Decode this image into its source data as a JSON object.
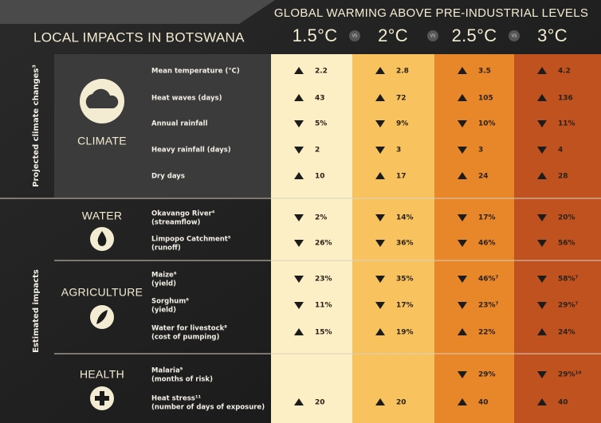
{
  "header": {
    "title": "LOCAL IMPACTS IN BOTSWANA",
    "scenario_title": "GLOBAL WARMING ABOVE PRE-INDUSTRIAL LEVELS",
    "levels": [
      "1.5°C",
      "2°C",
      "2.5°C",
      "3°C"
    ],
    "vs": "VS",
    "colors": [
      "#fcefc6",
      "#f8c35f",
      "#e8862a",
      "#c0521f"
    ]
  },
  "groups": [
    {
      "label": "Projected climate changes³",
      "sections": [
        0
      ]
    },
    {
      "label": "Estimated impacts",
      "sections": [
        1,
        2,
        3
      ]
    }
  ],
  "sections": [
    {
      "label": "CLIMATE",
      "rows": [
        {
          "label": "Mean temperature (°C)",
          "cells": [
            {
              "dir": "up",
              "text": "2.2"
            },
            {
              "dir": "up",
              "text": "2.8"
            },
            {
              "dir": "up",
              "text": "3.5"
            },
            {
              "dir": "up",
              "text": "4.2"
            }
          ]
        },
        {
          "label": "Heat waves (days)",
          "cells": [
            {
              "dir": "up",
              "text": "43"
            },
            {
              "dir": "up",
              "text": "72"
            },
            {
              "dir": "up",
              "text": "105"
            },
            {
              "dir": "up",
              "text": "136"
            }
          ]
        },
        {
          "label": "Annual rainfall",
          "cells": [
            {
              "dir": "down",
              "text": "5%"
            },
            {
              "dir": "down",
              "text": "9%"
            },
            {
              "dir": "down",
              "text": "10%"
            },
            {
              "dir": "down",
              "text": "11%"
            }
          ]
        },
        {
          "label": "Heavy rainfall (days)",
          "cells": [
            {
              "dir": "down",
              "text": "2"
            },
            {
              "dir": "down",
              "text": "3"
            },
            {
              "dir": "down",
              "text": "3"
            },
            {
              "dir": "down",
              "text": "4"
            }
          ]
        },
        {
          "label": "Dry days",
          "cells": [
            {
              "dir": "up",
              "text": "10"
            },
            {
              "dir": "up",
              "text": "17"
            },
            {
              "dir": "up",
              "text": "24"
            },
            {
              "dir": "up",
              "text": "28"
            }
          ]
        }
      ]
    },
    {
      "label": "WATER",
      "rows": [
        {
          "label": "Okavango River⁴",
          "sublabel": "(streamflow)",
          "cells": [
            {
              "dir": "down",
              "text": "2%"
            },
            {
              "dir": "down",
              "text": "14%"
            },
            {
              "dir": "down",
              "text": "17%"
            },
            {
              "dir": "down",
              "text": "20%"
            }
          ]
        },
        {
          "label": "Limpopo Catchment⁵",
          "sublabel": "(runoff)",
          "cells": [
            {
              "dir": "down",
              "text": "26%"
            },
            {
              "dir": "down",
              "text": "36%"
            },
            {
              "dir": "down",
              "text": "46%"
            },
            {
              "dir": "down",
              "text": "56%"
            }
          ]
        }
      ]
    },
    {
      "label": "AGRICULTURE",
      "rows": [
        {
          "label": "Maize⁶",
          "sublabel": "(yield)",
          "cells": [
            {
              "dir": "down",
              "text": "23%"
            },
            {
              "dir": "down",
              "text": "35%"
            },
            {
              "dir": "down",
              "text": "46%⁷"
            },
            {
              "dir": "down",
              "text": "58%⁷"
            }
          ]
        },
        {
          "label": "Sorghum⁶",
          "sublabel": "(yield)",
          "cells": [
            {
              "dir": "down",
              "text": "11%"
            },
            {
              "dir": "down",
              "text": "17%"
            },
            {
              "dir": "down",
              "text": "23%⁷"
            },
            {
              "dir": "down",
              "text": "29%⁷"
            }
          ]
        },
        {
          "label": "Water for livestock⁸",
          "sublabel": "(cost of pumping)",
          "cells": [
            {
              "dir": "up",
              "text": "15%"
            },
            {
              "dir": "up",
              "text": "19%"
            },
            {
              "dir": "up",
              "text": "22%"
            },
            {
              "dir": "up",
              "text": "24%"
            }
          ]
        }
      ]
    },
    {
      "label": "HEALTH",
      "rows": [
        {
          "label": "Malaria⁹",
          "sublabel": "(months of risk)",
          "cells": [
            null,
            null,
            {
              "dir": "down",
              "text": "29%"
            },
            {
              "dir": "down",
              "text": "29%¹⁰"
            }
          ]
        },
        {
          "label": "Heat stress¹¹",
          "sublabel": "(number of days of exposure)",
          "cells": [
            {
              "dir": "up",
              "text": "20"
            },
            {
              "dir": "up",
              "text": "20"
            },
            {
              "dir": "up",
              "text": "40"
            },
            {
              "dir": "up",
              "text": "40"
            }
          ]
        }
      ]
    }
  ]
}
